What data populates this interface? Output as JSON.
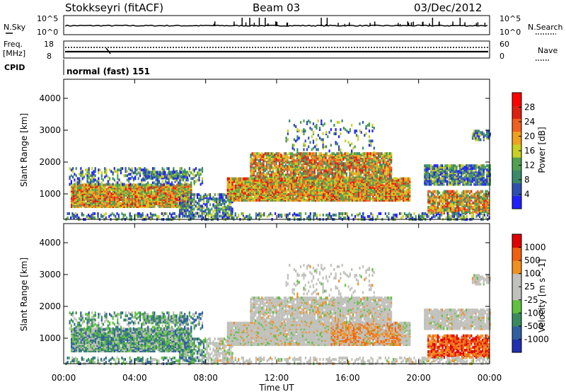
{
  "header": {
    "station": "Stokkseyri (fitACF)",
    "beam": "Beam 03",
    "date": "03/Dec/2012"
  },
  "colors": {
    "power_scale": [
      "#1f1fff",
      "#2f4fb0",
      "#3a8a6a",
      "#4fa050",
      "#c8d020",
      "#f0a020",
      "#f06020",
      "#e02010",
      "#ff0000"
    ],
    "velocity_scale": [
      "#2030b0",
      "#2f5fa0",
      "#3a8a60",
      "#60c040",
      "#c0c0bc",
      "#c0c0bc",
      "#f09020",
      "#f06010",
      "#e00000"
    ]
  },
  "strips": {
    "top": {
      "left_label": "N.Sky",
      "left_ticks": [
        "10^5",
        "10^0"
      ],
      "right_ticks": [
        "10^5",
        "10^0"
      ],
      "right_label": "N.Search"
    },
    "freq": {
      "left_label_1": "Freq.",
      "left_label_2": "[MHz]",
      "left_ticks": [
        "18",
        "8"
      ],
      "right_ticks": [
        "60",
        "0"
      ],
      "right_label": "Nave"
    },
    "cpid": {
      "label": "CPID",
      "text": "normal (fast) 151"
    }
  },
  "chart_data": [
    {
      "type": "heatmap",
      "title": "",
      "ylabel": "Slant Range [km]",
      "ylim": [
        200,
        4600
      ],
      "yticks": [
        "1000",
        "2000",
        "3000",
        "4000"
      ],
      "colorbar_label": "Power [dB]",
      "colorbar_ticks": [
        "28",
        "24",
        "20",
        "16",
        "12",
        "8",
        "4"
      ],
      "colorbar_range": [
        0,
        32
      ]
    },
    {
      "type": "heatmap",
      "title": "",
      "ylabel": "Slant Range [km]",
      "ylim": [
        200,
        4600
      ],
      "yticks": [
        "1000",
        "2000",
        "3000",
        "4000"
      ],
      "colorbar_label": "Velocity [m s^-1]",
      "colorbar_ticks": [
        "1000",
        "500",
        "100",
        "25",
        "-25",
        "-100",
        "-500",
        "-1000"
      ],
      "colorbar_range": [
        -1200,
        1200
      ]
    }
  ],
  "xaxis": {
    "label": "Time UT",
    "ticks": [
      "00:00",
      "04:00",
      "08:00",
      "12:00",
      "16:00",
      "20:00",
      "00:00"
    ]
  }
}
